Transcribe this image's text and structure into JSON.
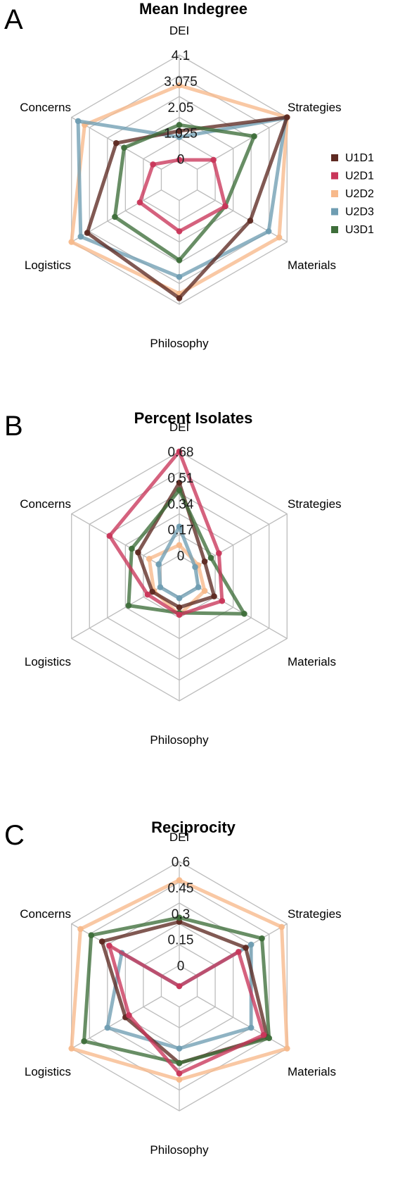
{
  "legend": [
    {
      "name": "U1D1",
      "color": "#5e2a22"
    },
    {
      "name": "U2D1",
      "color": "#c9365a"
    },
    {
      "name": "U2D2",
      "color": "#f7b98b"
    },
    {
      "name": "U2D3",
      "color": "#6f9db2"
    },
    {
      "name": "U3D1",
      "color": "#3e6e3a"
    }
  ],
  "chart_data": [
    {
      "panel": "A",
      "type": "radar",
      "title": "Mean Indegree",
      "axes": [
        "DEI",
        "Strategies",
        "Materials",
        "Philosophy",
        "Logistics",
        "Concerns"
      ],
      "ticks": [
        "0",
        "1.025",
        "2.05",
        "3.075",
        "4.1"
      ],
      "range": [
        0,
        4.1
      ],
      "series": [
        {
          "name": "U1D1",
          "values": [
            1.6,
            4.1,
            2.7,
            3.9,
            3.5,
            2.4
          ]
        },
        {
          "name": "U2D1",
          "values": [
            0.65,
            1.3,
            1.75,
            1.7,
            1.5,
            1.0
          ]
        },
        {
          "name": "U2D2",
          "values": [
            3.1,
            4.1,
            3.8,
            3.75,
            4.1,
            3.6
          ]
        },
        {
          "name": "U2D3",
          "values": [
            1.4,
            4.05,
            3.4,
            3.2,
            3.75,
            3.85
          ]
        },
        {
          "name": "U3D1",
          "values": [
            1.8,
            2.85,
            1.75,
            2.65,
            2.45,
            2.1
          ]
        }
      ]
    },
    {
      "panel": "B",
      "type": "radar",
      "title": "Percent Isolates",
      "axes": [
        "DEI",
        "Strategies",
        "Materials",
        "Philosophy",
        "Logistics",
        "Concerns"
      ],
      "ticks": [
        "0",
        "0.17",
        "0.34",
        "0.51",
        "0.68"
      ],
      "range": [
        0,
        0.68
      ],
      "series": [
        {
          "name": "U1D1",
          "values": [
            0.51,
            0.16,
            0.22,
            0.17,
            0.17,
            0.26
          ]
        },
        {
          "name": "U2D1",
          "values": [
            0.68,
            0.25,
            0.27,
            0.21,
            0.2,
            0.44
          ]
        },
        {
          "name": "U2D2",
          "values": [
            0.17,
            0.12,
            0.16,
            0.21,
            0.16,
            0.19
          ]
        },
        {
          "name": "U2D3",
          "values": [
            0.27,
            0.1,
            0.12,
            0.12,
            0.12,
            0.13
          ]
        },
        {
          "name": "U3D1",
          "values": [
            0.47,
            0.2,
            0.41,
            0.2,
            0.32,
            0.3
          ]
        }
      ]
    },
    {
      "panel": "C",
      "type": "radar",
      "title": "Reciprocity",
      "axes": [
        "DEI",
        "Strategies",
        "Materials",
        "Philosophy",
        "Logistics",
        "Concerns"
      ],
      "ticks": [
        "0",
        "0.15",
        "0.3",
        "0.45",
        "0.6"
      ],
      "range": [
        0,
        0.6
      ],
      "series": [
        {
          "name": "U1D1",
          "values": [
            0.31,
            0.37,
            0.49,
            0.37,
            0.3,
            0.43
          ]
        },
        {
          "name": "U2D1",
          "values": [
            0.0,
            0.33,
            0.47,
            0.42,
            0.28,
            0.39
          ]
        },
        {
          "name": "U2D2",
          "values": [
            0.51,
            0.57,
            0.6,
            0.45,
            0.6,
            0.55
          ]
        },
        {
          "name": "U2D3",
          "values": [
            0.0,
            0.4,
            0.4,
            0.3,
            0.4,
            0.32
          ]
        },
        {
          "name": "U3D1",
          "values": [
            0.33,
            0.46,
            0.5,
            0.37,
            0.53,
            0.49
          ]
        }
      ]
    }
  ]
}
